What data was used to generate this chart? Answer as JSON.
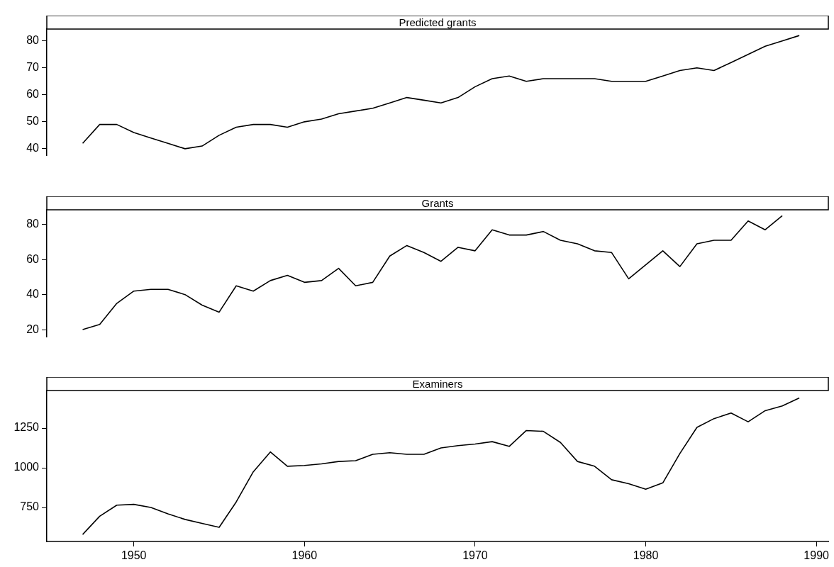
{
  "chart_data": [
    {
      "type": "line",
      "title": "Predicted grants",
      "x": [
        1947,
        1948,
        1949,
        1950,
        1951,
        1952,
        1953,
        1954,
        1955,
        1956,
        1957,
        1958,
        1959,
        1960,
        1961,
        1962,
        1963,
        1964,
        1965,
        1966,
        1967,
        1968,
        1969,
        1970,
        1971,
        1972,
        1973,
        1974,
        1975,
        1976,
        1977,
        1978,
        1979,
        1980,
        1981,
        1982,
        1983,
        1984,
        1985,
        1986,
        1987,
        1988,
        1989
      ],
      "values": [
        42,
        49,
        49,
        46,
        44,
        42,
        40,
        41,
        45,
        48,
        49,
        49,
        48,
        50,
        51,
        53,
        54,
        55,
        57,
        59,
        58,
        57,
        59,
        63,
        66,
        67,
        65,
        66,
        66,
        66,
        66,
        65,
        65,
        65,
        67,
        69,
        70,
        69,
        72,
        75,
        78,
        80,
        82
      ],
      "color": "#000000",
      "marker": "none",
      "line_style": "solid",
      "grid": false,
      "tick_labels": "y",
      "ylim": [
        37.6,
        84.4
      ],
      "yticks": [
        40,
        50,
        60,
        70,
        80
      ]
    },
    {
      "type": "line",
      "title": "Grants",
      "x": [
        1947,
        1948,
        1949,
        1950,
        1951,
        1952,
        1953,
        1954,
        1955,
        1956,
        1957,
        1958,
        1959,
        1960,
        1961,
        1962,
        1963,
        1964,
        1965,
        1966,
        1967,
        1968,
        1969,
        1970,
        1971,
        1972,
        1973,
        1974,
        1975,
        1976,
        1977,
        1978,
        1979,
        1980,
        1981,
        1982,
        1983,
        1984,
        1985,
        1986,
        1987,
        1988
      ],
      "values": [
        20,
        23,
        35,
        42,
        43,
        43,
        40,
        34,
        30,
        45,
        42,
        48,
        51,
        47,
        48,
        55,
        45,
        47,
        62,
        68,
        64,
        59,
        67,
        65,
        77,
        74,
        74,
        76,
        71,
        69,
        65,
        64,
        49,
        57,
        65,
        56,
        69,
        71,
        71,
        82,
        77,
        85
      ],
      "color": "#000000",
      "marker": "none",
      "line_style": "solid",
      "grid": false,
      "tick_labels": "y",
      "ylim": [
        16,
        88.4
      ],
      "yticks": [
        20,
        40,
        60,
        80
      ]
    },
    {
      "type": "line",
      "title": "Examiners",
      "x": [
        1947,
        1948,
        1949,
        1950,
        1951,
        1952,
        1953,
        1954,
        1955,
        1956,
        1957,
        1958,
        1959,
        1960,
        1961,
        1962,
        1963,
        1964,
        1965,
        1966,
        1967,
        1968,
        1969,
        1970,
        1971,
        1972,
        1973,
        1974,
        1975,
        1976,
        1977,
        1978,
        1979,
        1980,
        1981,
        1982,
        1983,
        1984,
        1985,
        1986,
        1987,
        1988,
        1989
      ],
      "values": [
        580,
        695,
        765,
        770,
        750,
        710,
        675,
        650,
        625,
        785,
        975,
        1100,
        1010,
        1015,
        1025,
        1040,
        1045,
        1085,
        1095,
        1085,
        1085,
        1125,
        1140,
        1150,
        1165,
        1135,
        1235,
        1230,
        1160,
        1040,
        1010,
        925,
        900,
        865,
        905,
        1090,
        1255,
        1310,
        1345,
        1290,
        1360,
        1390,
        1440
      ],
      "color": "#000000",
      "marker": "none",
      "line_style": "solid",
      "grid": false,
      "xlim": [
        1944.9,
        1990.7
      ],
      "xticks": [
        1950,
        1960,
        1970,
        1980,
        1990
      ],
      "ylim": [
        536,
        1487
      ],
      "yticks": [
        750,
        1000,
        1250
      ]
    }
  ]
}
